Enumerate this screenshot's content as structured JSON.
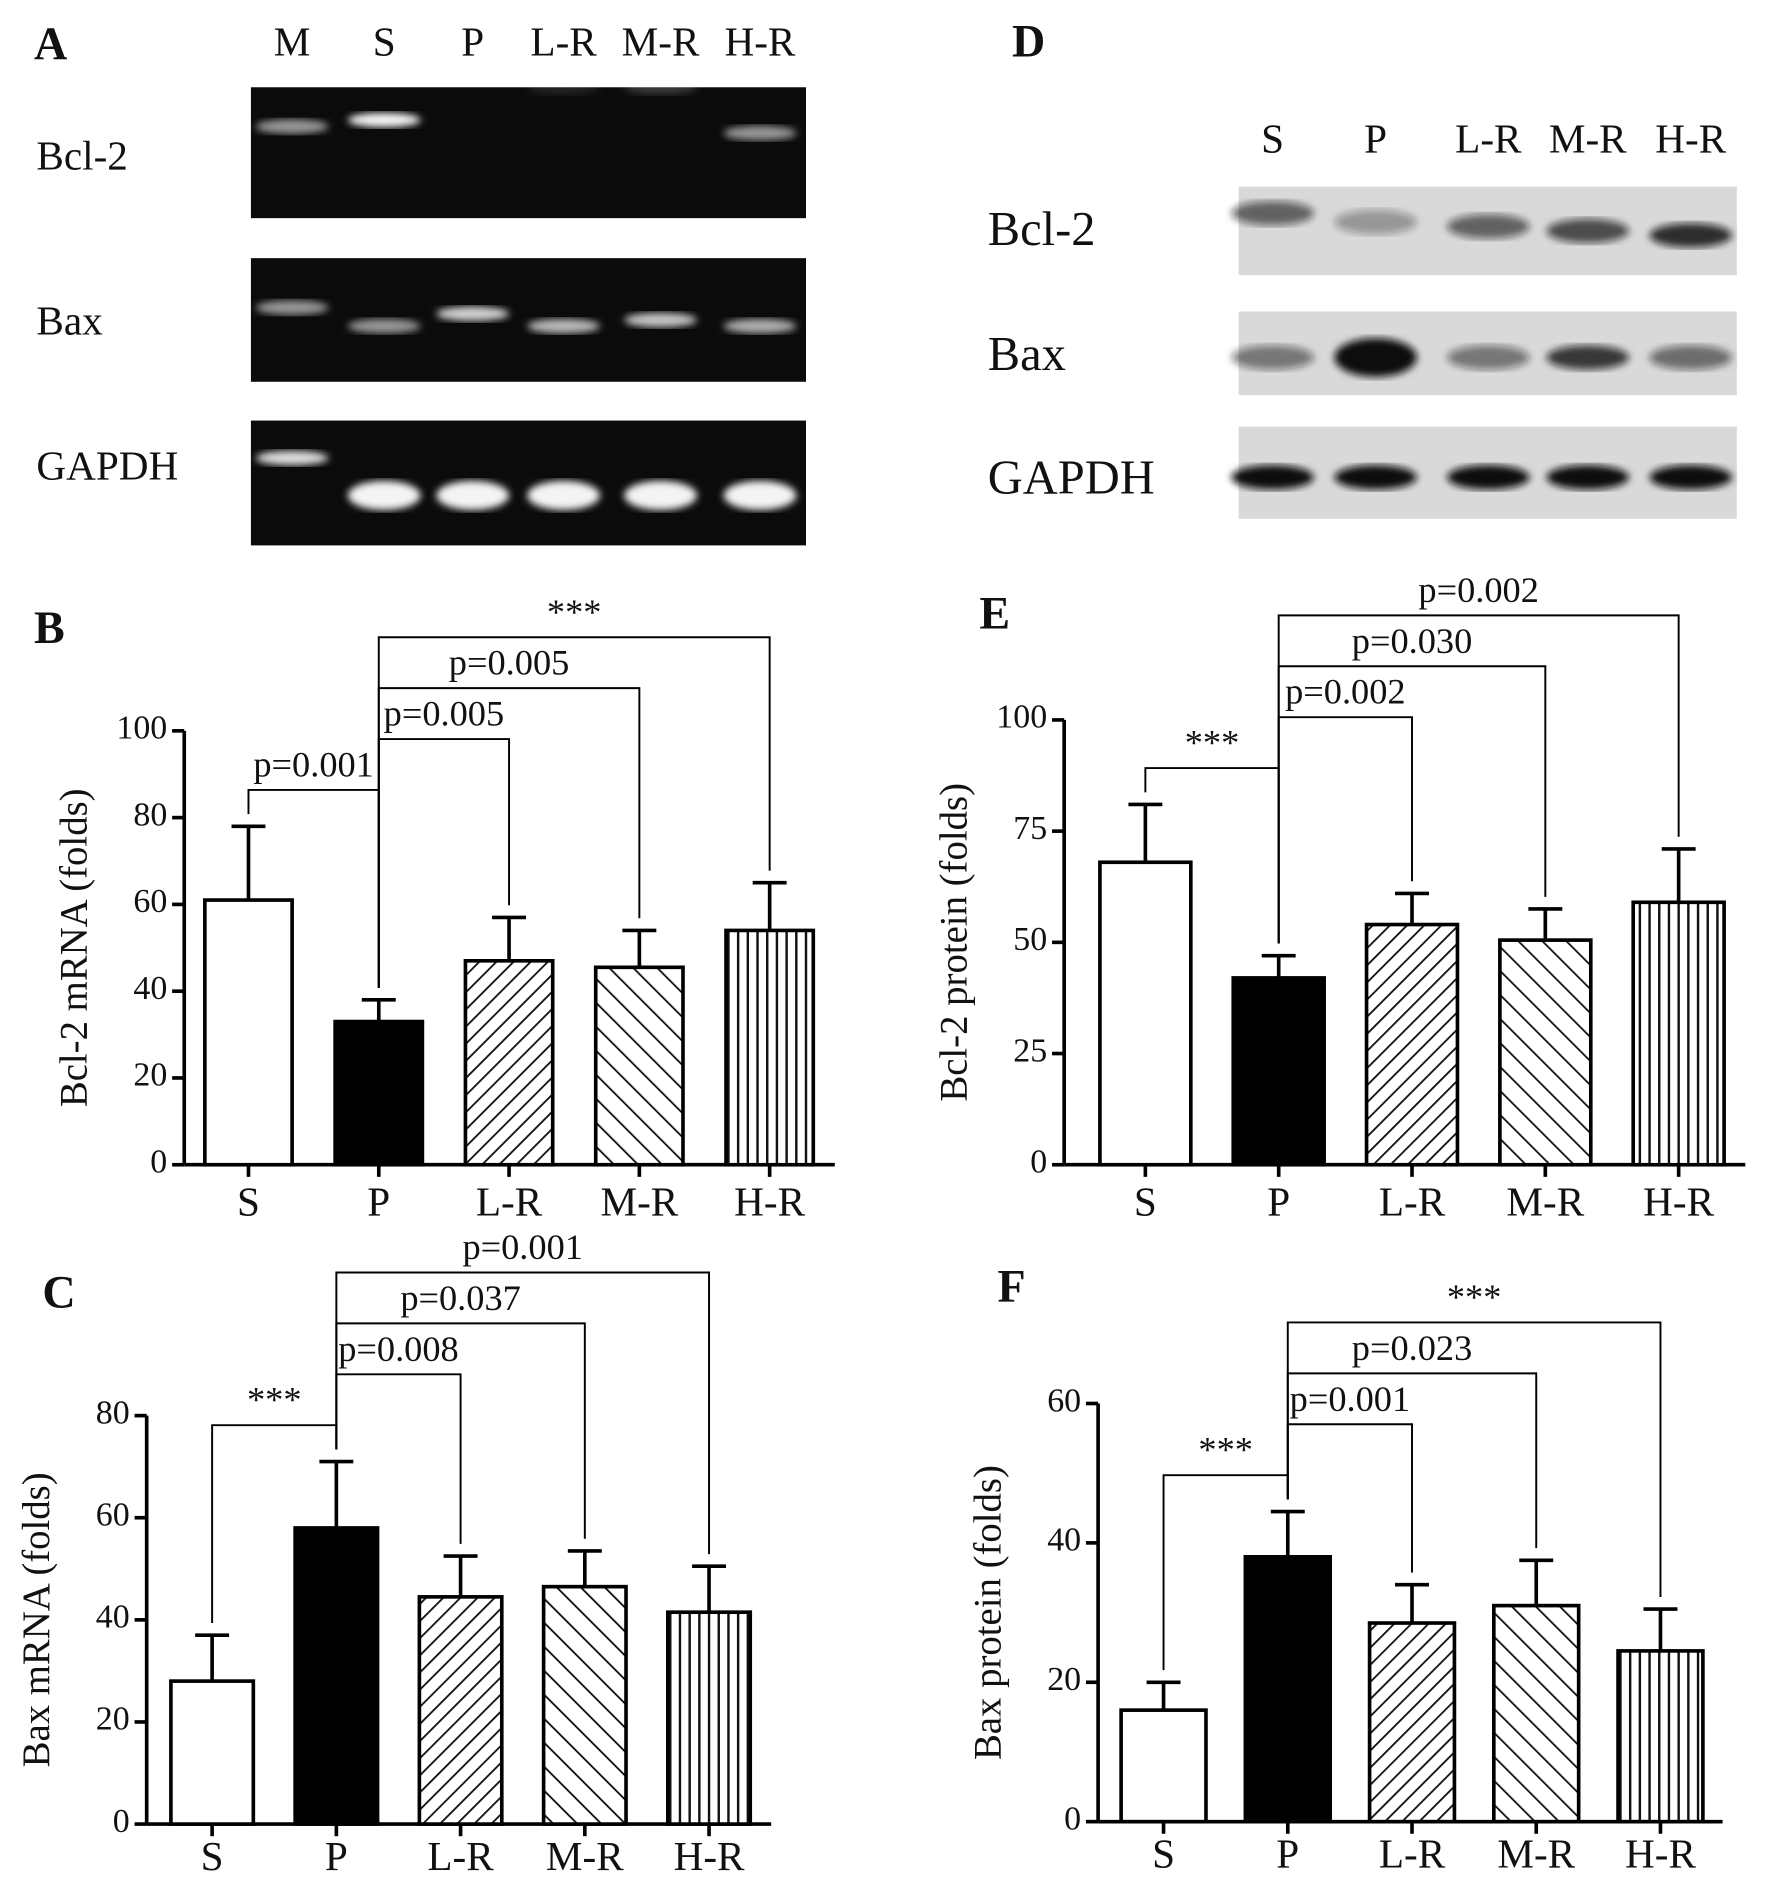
{
  "blots": [
    {
      "panel": "A",
      "lanes": [
        "M",
        "S",
        "P",
        "L-R",
        "M-R",
        "H-R"
      ],
      "rows": [
        "Bcl-2",
        "Bax",
        "GAPDH"
      ]
    },
    {
      "panel": "D",
      "lanes": [
        "S",
        "P",
        "L-R",
        "M-R",
        "H-R"
      ],
      "rows": [
        "Bcl-2",
        "Bax",
        "GAPDH"
      ]
    }
  ],
  "chart_data": [
    {
      "type": "bar",
      "panel": "B",
      "y_label": "Bcl-2 mRNA (folds)",
      "categories": [
        "S",
        "P",
        "L-R",
        "M-R",
        "H-R"
      ],
      "values": [
        61,
        33,
        47,
        45.5,
        54
      ],
      "errors": [
        17,
        5,
        10,
        8.5,
        11
      ],
      "patterns": [
        "none",
        "solid",
        "diagonal-up",
        "diagonal-down",
        "vertical"
      ],
      "ylim": [
        0,
        100
      ],
      "yticks": [
        0,
        20,
        40,
        60,
        80,
        100
      ],
      "annotations": [
        {
          "text": "p=0.001",
          "between": [
            "S",
            "P"
          ]
        },
        {
          "text": "p=0.005",
          "between": [
            "P",
            "L-R"
          ]
        },
        {
          "text": "p=0.005",
          "between": [
            "P",
            "M-R"
          ]
        },
        {
          "text": "***",
          "between": [
            "P",
            "H-R"
          ]
        }
      ]
    },
    {
      "type": "bar",
      "panel": "C",
      "y_label": "Bax mRNA (folds)",
      "categories": [
        "S",
        "P",
        "L-R",
        "M-R",
        "H-R"
      ],
      "values": [
        28,
        58,
        44.5,
        46.5,
        41.5
      ],
      "errors": [
        9,
        13,
        8,
        7,
        9
      ],
      "patterns": [
        "none",
        "solid",
        "diagonal-up",
        "diagonal-down",
        "vertical"
      ],
      "ylim": [
        0,
        80
      ],
      "yticks": [
        0,
        20,
        40,
        60,
        80
      ],
      "annotations": [
        {
          "text": "***",
          "between": [
            "S",
            "P"
          ]
        },
        {
          "text": "p=0.008",
          "between": [
            "P",
            "L-R"
          ]
        },
        {
          "text": "p=0.037",
          "between": [
            "P",
            "M-R"
          ]
        },
        {
          "text": "p=0.001",
          "between": [
            "P",
            "H-R"
          ]
        }
      ]
    },
    {
      "type": "bar",
      "panel": "E",
      "y_label": "Bcl-2 protein (folds)",
      "categories": [
        "S",
        "P",
        "L-R",
        "M-R",
        "H-R"
      ],
      "values": [
        68,
        42,
        54,
        50.5,
        59
      ],
      "errors": [
        13,
        5,
        7,
        7,
        12
      ],
      "patterns": [
        "none",
        "solid",
        "diagonal-up",
        "diagonal-down",
        "vertical"
      ],
      "ylim": [
        0,
        100
      ],
      "yticks": [
        0,
        25,
        50,
        75,
        100
      ],
      "annotations": [
        {
          "text": "***",
          "between": [
            "S",
            "P"
          ]
        },
        {
          "text": "p=0.002",
          "between": [
            "P",
            "L-R"
          ]
        },
        {
          "text": "p=0.030",
          "between": [
            "P",
            "M-R"
          ]
        },
        {
          "text": "p=0.002",
          "between": [
            "P",
            "H-R"
          ]
        }
      ]
    },
    {
      "type": "bar",
      "panel": "F",
      "y_label": "Bax protein (folds)",
      "categories": [
        "S",
        "P",
        "L-R",
        "M-R",
        "H-R"
      ],
      "values": [
        16,
        38,
        28.5,
        31,
        24.5
      ],
      "errors": [
        4,
        6.5,
        5.5,
        6.5,
        6
      ],
      "patterns": [
        "none",
        "solid",
        "diagonal-up",
        "diagonal-down",
        "vertical"
      ],
      "ylim": [
        0,
        60
      ],
      "yticks": [
        0,
        20,
        40,
        60
      ],
      "annotations": [
        {
          "text": "***",
          "between": [
            "S",
            "P"
          ]
        },
        {
          "text": "p=0.001",
          "between": [
            "P",
            "L-R"
          ]
        },
        {
          "text": "p=0.023",
          "between": [
            "P",
            "M-R"
          ]
        },
        {
          "text": "***",
          "between": [
            "P",
            "H-R"
          ]
        }
      ]
    }
  ]
}
